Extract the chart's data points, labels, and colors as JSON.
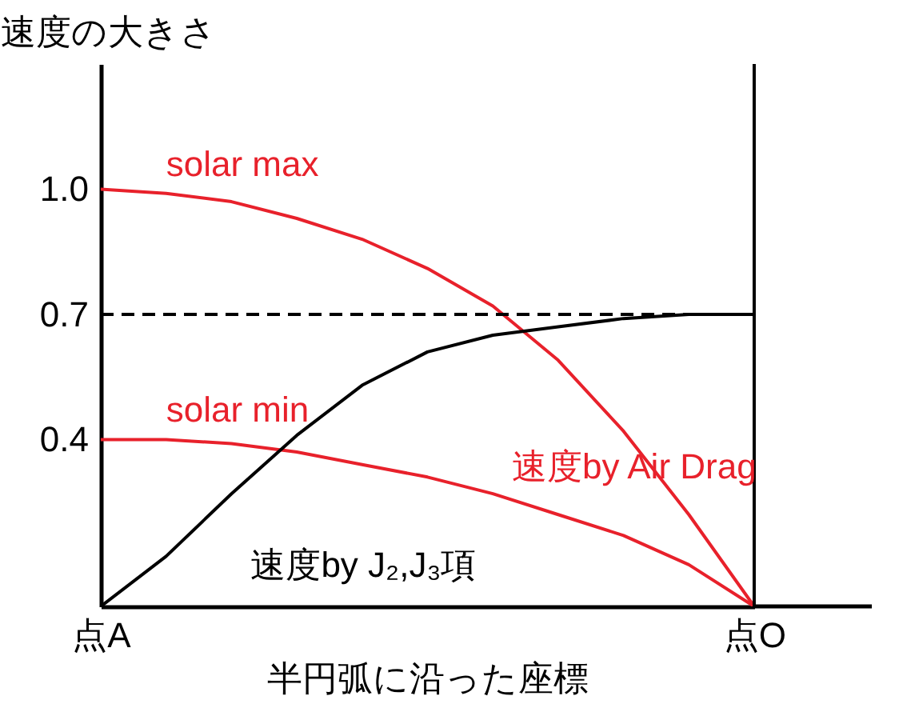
{
  "chart_data": {
    "type": "line",
    "xlabel": "半円弧に沿った座標",
    "ylabel": "速度の大きさ",
    "categories": [
      "点A",
      null,
      null,
      null,
      null,
      null,
      null,
      null,
      null,
      null,
      "点O"
    ],
    "series": [
      {
        "name": "solar max",
        "color": "#e8212b",
        "values": [
          1,
          0.99,
          0.97,
          0.93,
          0.88,
          0.81,
          0.72,
          0.59,
          0.42,
          0.22,
          0
        ]
      },
      {
        "name": "solar min",
        "color": "#e8212b",
        "values": [
          0.4,
          0.4,
          0.39,
          0.37,
          0.34,
          0.31,
          0.27,
          0.22,
          0.17,
          0.1,
          0
        ]
      },
      {
        "name": "速度by J₂,J₃項",
        "color": "#000000",
        "values": [
          0,
          0.12,
          0.27,
          0.41,
          0.53,
          0.61,
          0.65,
          0.67,
          0.69,
          0.7,
          0.7
        ]
      }
    ],
    "ylim": [
      0,
      1.3
    ],
    "yticks": [
      0.4,
      0.7,
      {
        "value": 1,
        "label": "1.0"
      }
    ],
    "ref_lines": [
      {
        "axis": "y",
        "value": 0.7,
        "line_style": "dashed",
        "color": "#000000"
      },
      {
        "axis": "x",
        "value": "点O",
        "line_style": "solid",
        "color": "#000000"
      }
    ],
    "annotations": [
      "速度by Air Drag"
    ],
    "grid": false,
    "legend": false,
    "marker": "none",
    "line_style": "solid"
  }
}
